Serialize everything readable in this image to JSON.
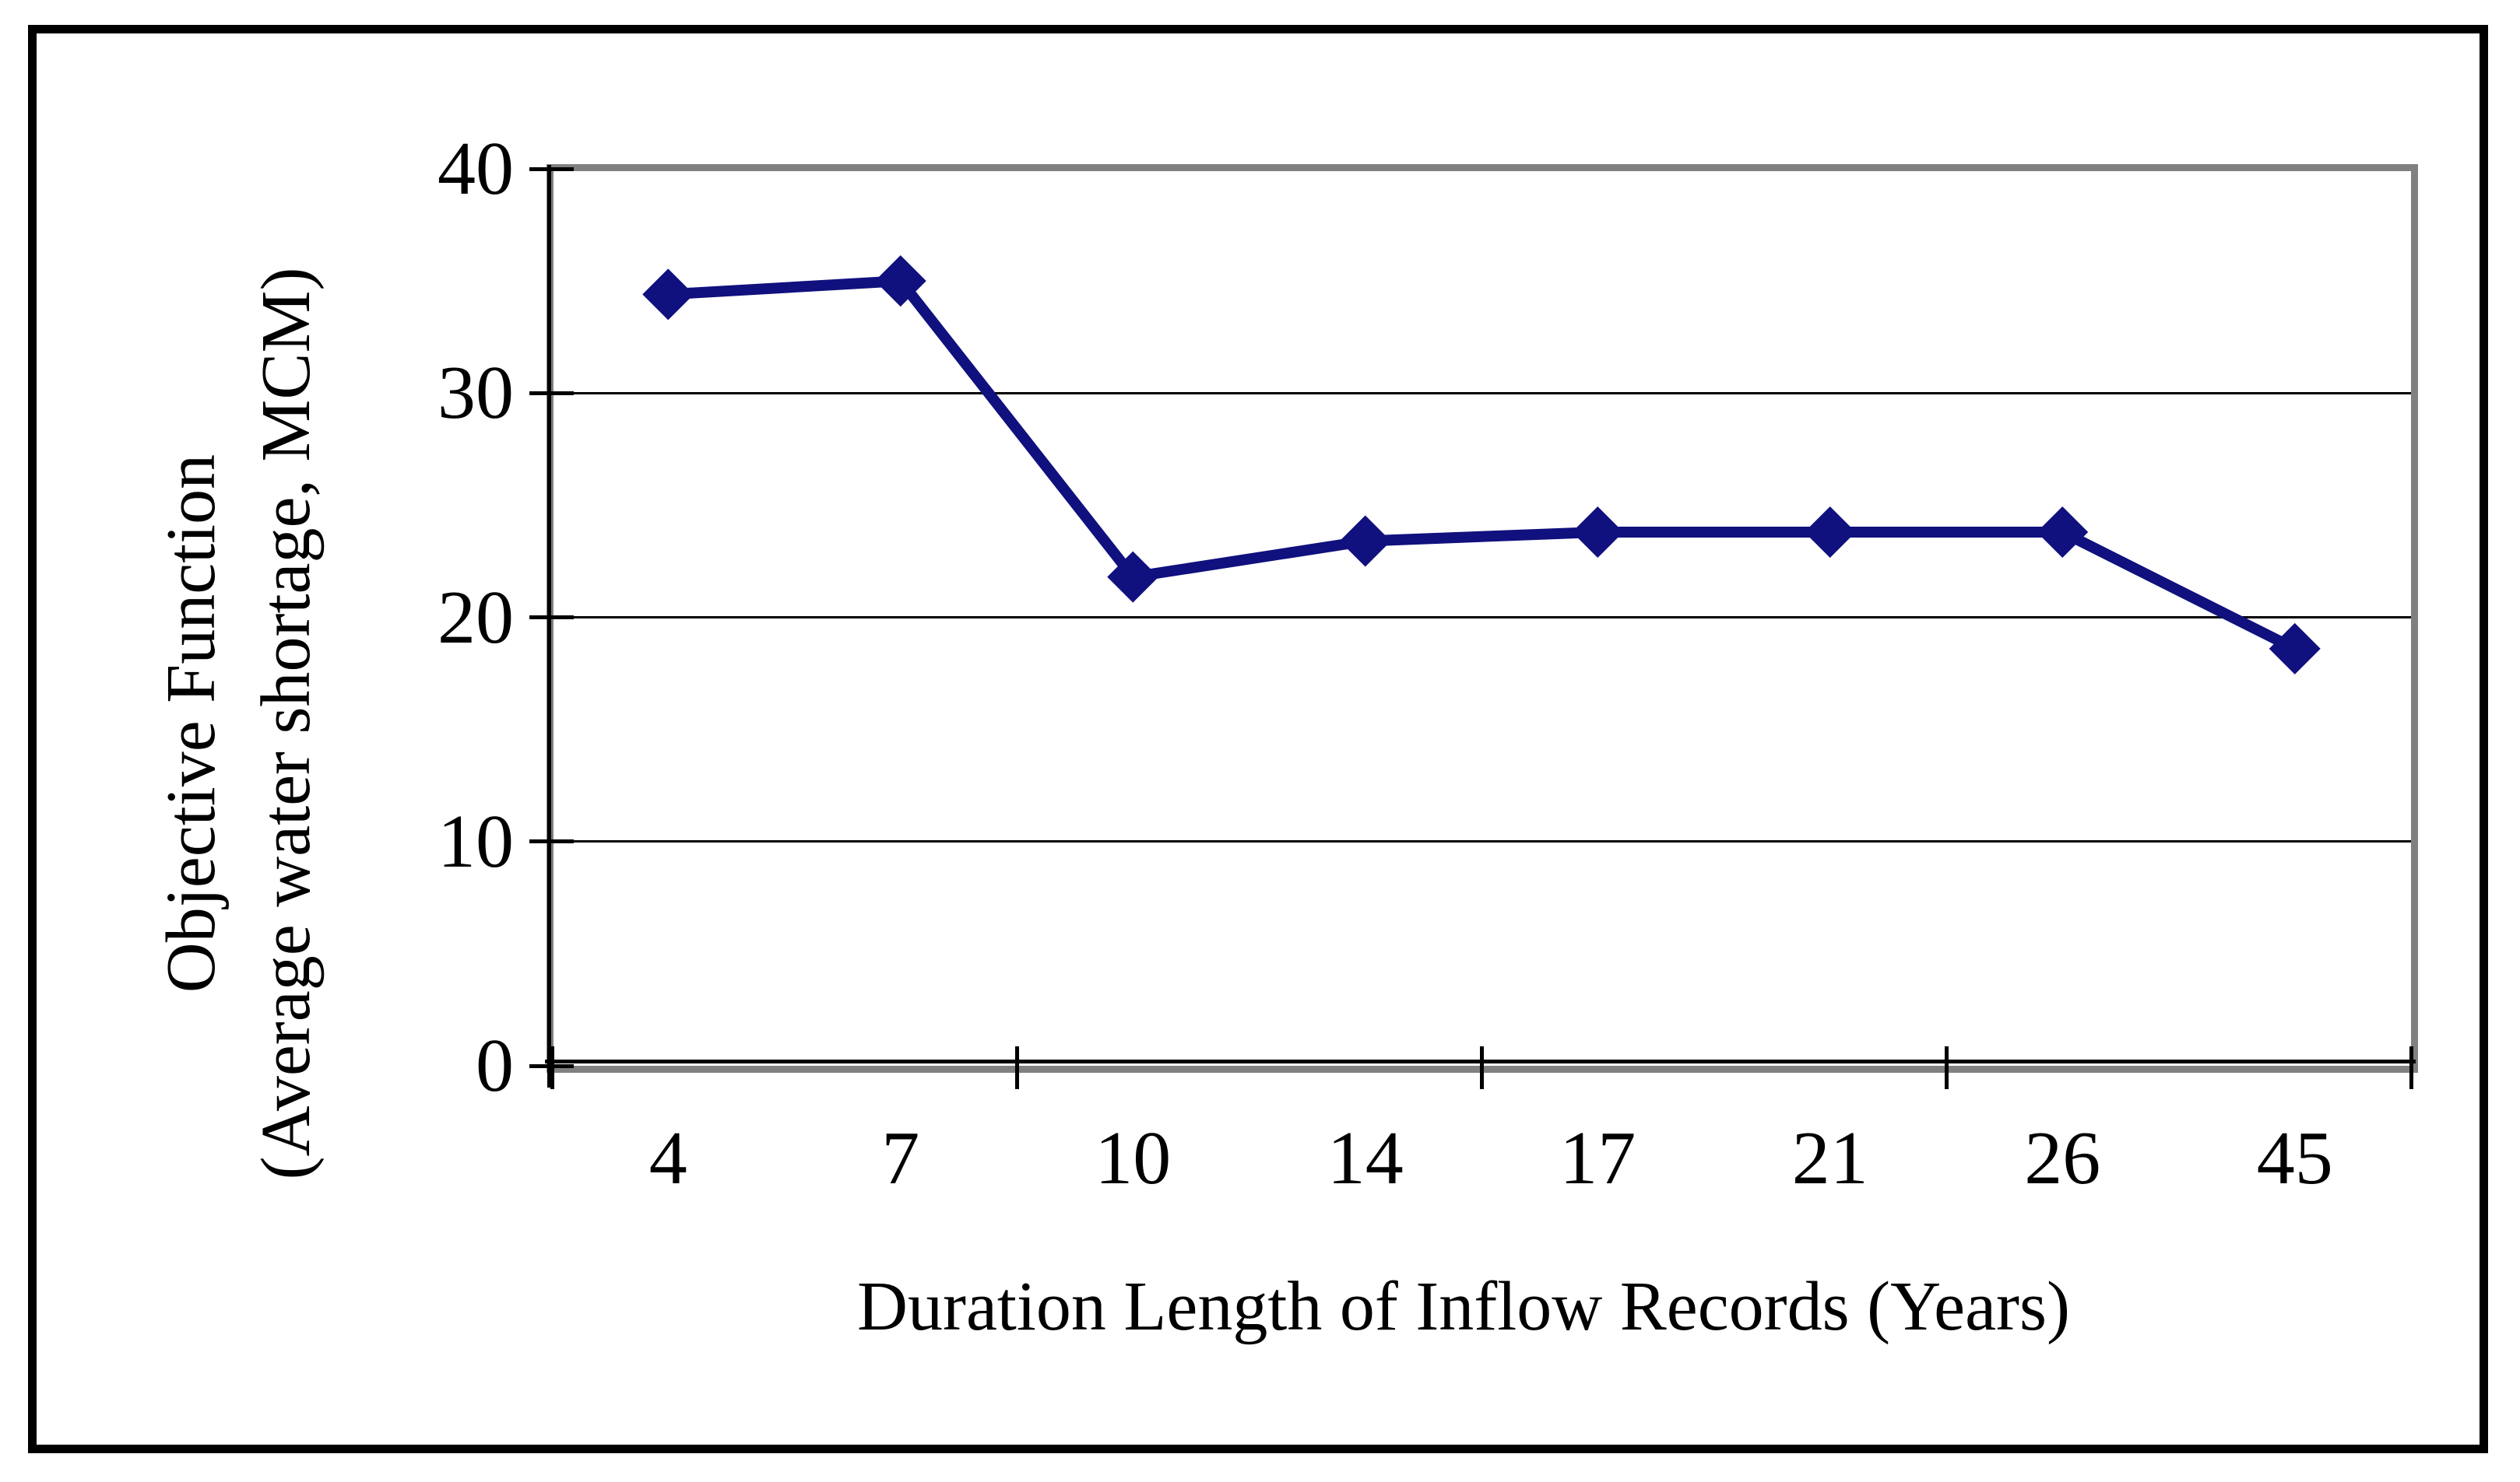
{
  "figure": {
    "background_color": "#ffffff",
    "outer_border_color": "#000000",
    "plot_border_color": "#808080",
    "gridline_color": "#000000",
    "axis_color": "#000000",
    "text_color": "#000000"
  },
  "chart_data": {
    "type": "line",
    "title": "",
    "xlabel": "Duration Length of Inflow Records (Years)",
    "ylabel_line1": "Objective Function",
    "ylabel_line2": "(Average water shortage, MCM)",
    "categories": [
      "4",
      "7",
      "10",
      "14",
      "17",
      "21",
      "26",
      "45"
    ],
    "series": [
      {
        "name": "Objective Function (Average water shortage, MCM)",
        "values": [
          34.4,
          35.0,
          21.8,
          23.4,
          23.8,
          23.8,
          23.8,
          18.6
        ],
        "color": "#10107E",
        "marker": "diamond"
      }
    ],
    "ylim": [
      0,
      40
    ],
    "yticks": [
      0,
      10,
      20,
      30,
      40
    ],
    "gridlines_at": [
      10,
      20,
      30
    ],
    "x_ticks_every_n_categories": 2,
    "grid_on": true,
    "legend_position": "none"
  }
}
